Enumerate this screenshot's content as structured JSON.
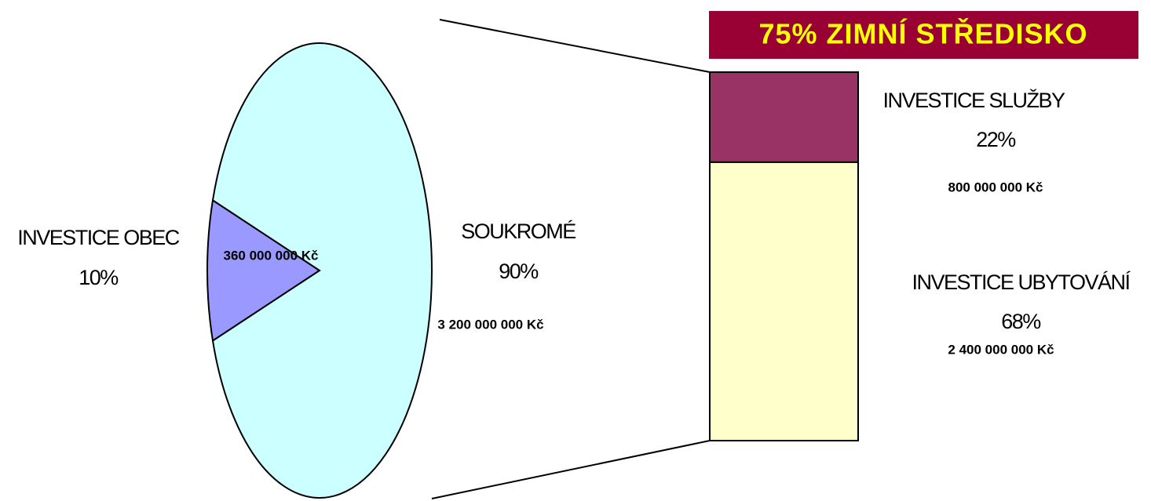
{
  "chart_data": [
    {
      "type": "pie",
      "categories": [
        "INVESTICE OBEC",
        "SOUKROMÉ"
      ],
      "values": [
        10,
        90
      ],
      "value_labels": [
        "10%",
        "90%"
      ],
      "amounts": [
        360000000,
        3200000000
      ],
      "amount_labels": [
        "360 000 000 Kč",
        "3 200 000 000 Kč"
      ],
      "colors": [
        "#9999ff",
        "#ccffff"
      ]
    },
    {
      "type": "stacked-bar",
      "title": "75%  ZIMNÍ STŘEDISKO",
      "categories": [
        "INVESTICE SLUŽBY",
        "INVESTICE UBYTOVÁNÍ"
      ],
      "values": [
        22,
        68
      ],
      "value_labels": [
        "22%",
        "68%"
      ],
      "amounts": [
        800000000,
        2400000000
      ],
      "amount_labels": [
        "800 000 000 Kč",
        "2 400 000 000 Kč"
      ],
      "colors": [
        "#993366",
        "#ffffcc"
      ]
    }
  ]
}
